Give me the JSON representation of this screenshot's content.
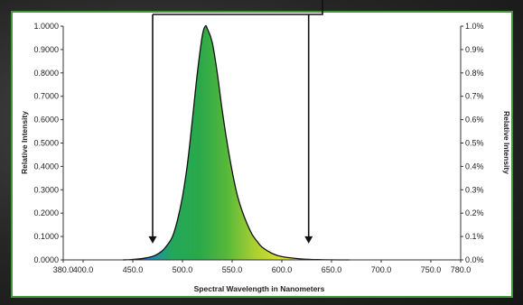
{
  "colors": {
    "frame_border": "#3f9a36",
    "curve_stroke": "#111111",
    "gradient_stops": [
      "#1f7fd6",
      "#23a85a",
      "#2aa84a",
      "#57b83a",
      "#a9cf32",
      "#e0e22a"
    ]
  },
  "chart_data": {
    "type": "area",
    "title": "",
    "xlabel": "Spectral Wavelength in Nanometers",
    "ylabel_left": "Relative Intensity",
    "ylabel_right": "Relative Intensity",
    "xlim": [
      380,
      780
    ],
    "ylim_left": [
      0,
      1
    ],
    "ylim_right": [
      0,
      1.0
    ],
    "x_ticks": [
      "380.0",
      "400.0",
      "450.0",
      "500.0",
      "550.0",
      "600.0",
      "650.0",
      "700.0",
      "750.0",
      "780.0"
    ],
    "x_tick_values": [
      380,
      400,
      450,
      500,
      550,
      600,
      650,
      700,
      750,
      780
    ],
    "y_left_ticks": [
      "0.0000",
      "0.1000",
      "0.2000",
      "0.3000",
      "0.4000",
      "0.5000",
      "0.6000",
      "0.7000",
      "0.8000",
      "0.9000",
      "1.0000"
    ],
    "y_left_values": [
      0,
      0.1,
      0.2,
      0.3,
      0.4,
      0.5,
      0.6,
      0.7,
      0.8,
      0.9,
      1.0
    ],
    "y_right_ticks": [
      "0.0%",
      "0.1%",
      "0.2%",
      "0.3%",
      "0.4%",
      "0.5%",
      "0.6%",
      "0.7%",
      "0.8%",
      "0.9%",
      "1.0%"
    ],
    "grid": false,
    "series": [
      {
        "x": [
          440,
          450,
          460,
          470,
          475,
          480,
          485,
          490,
          495,
          500,
          505,
          510,
          515,
          520,
          523,
          525,
          530,
          535,
          540,
          545,
          550,
          555,
          560,
          565,
          570,
          575,
          580,
          590,
          600,
          620,
          640,
          668
        ],
        "y": [
          0.0,
          0.002,
          0.006,
          0.015,
          0.025,
          0.04,
          0.065,
          0.1,
          0.17,
          0.27,
          0.41,
          0.6,
          0.8,
          0.96,
          1.0,
          0.99,
          0.93,
          0.8,
          0.64,
          0.5,
          0.38,
          0.28,
          0.21,
          0.155,
          0.11,
          0.08,
          0.055,
          0.028,
          0.014,
          0.004,
          0.001,
          0.0
        ]
      }
    ],
    "annotations": [
      {
        "type": "arrow",
        "x": 470,
        "from": "top",
        "to_y": 0.07
      },
      {
        "type": "arrow",
        "x": 627,
        "from": "top",
        "to_y": 0.07
      }
    ]
  }
}
